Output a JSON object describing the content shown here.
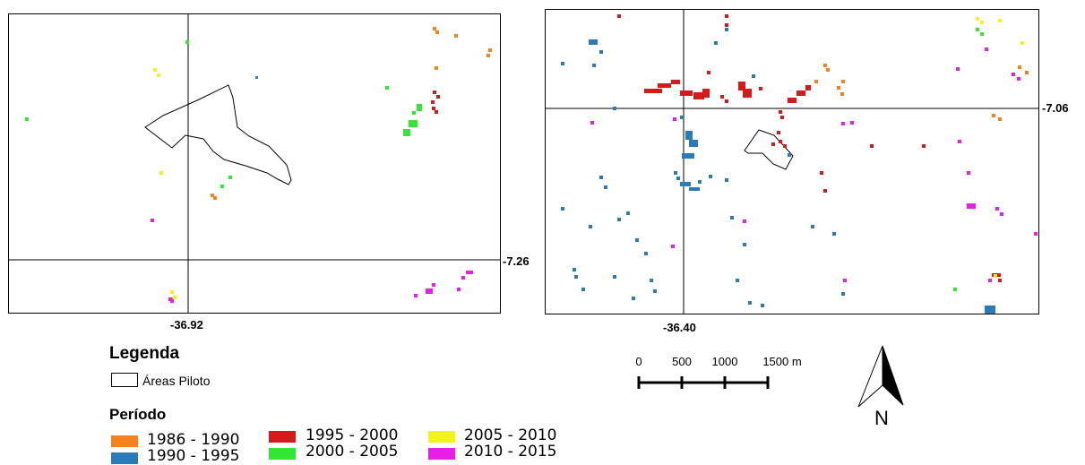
{
  "maps": {
    "left": {
      "lon_label": "-36.92",
      "lat_label": "-7.26"
    },
    "right": {
      "lon_label": "-36.40",
      "lat_label": "-7.06"
    }
  },
  "legend": {
    "title": "Legenda",
    "pilot_areas_label": "Áreas Piloto",
    "period_title": "Período",
    "classes": [
      {
        "label": "1986 - 1990",
        "color": "#f5821f"
      },
      {
        "label": "1990 - 1995",
        "color": "#2b7bb9"
      },
      {
        "label": "1995 - 2000",
        "color": "#d7191c"
      },
      {
        "label": "2000 - 2005",
        "color": "#33e633"
      },
      {
        "label": "2005 - 2010",
        "color": "#f2f51d"
      },
      {
        "label": "2010 - 2015",
        "color": "#e61ee6"
      }
    ]
  },
  "scale_bar": {
    "ticks": [
      "0",
      "500",
      "1000",
      "1500 m"
    ]
  },
  "north_arrow": {
    "label": "N"
  }
}
